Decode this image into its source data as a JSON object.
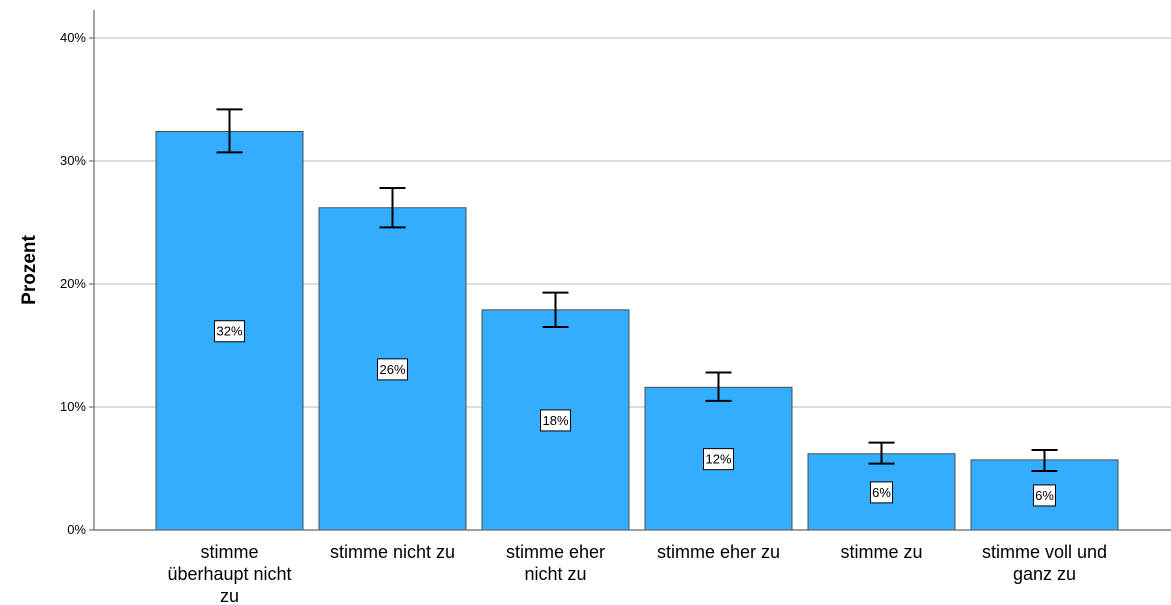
{
  "chart_data": {
    "type": "bar",
    "title": "",
    "xlabel": "",
    "ylabel": "Prozent",
    "ylim": [
      0,
      42
    ],
    "yticks": [
      0,
      10,
      20,
      30,
      40
    ],
    "ytick_labels": [
      "0%",
      "10%",
      "20%",
      "30%",
      "40%"
    ],
    "grid": true,
    "bar_color": "#33adff",
    "categories": [
      "stimme überhaupt nicht zu",
      "stimme nicht zu",
      "stimme eher nicht zu",
      "stimme eher zu",
      "stimme zu",
      "stimme voll und ganz zu"
    ],
    "category_lines": [
      [
        "stimme",
        "überhaupt nicht",
        "zu"
      ],
      [
        "stimme nicht zu"
      ],
      [
        "stimme eher",
        "nicht zu"
      ],
      [
        "stimme eher zu"
      ],
      [
        "stimme zu"
      ],
      [
        "stimme voll und",
        "ganz zu"
      ]
    ],
    "values": [
      32.4,
      26.2,
      17.9,
      11.6,
      6.2,
      5.7
    ],
    "data_labels": [
      "32%",
      "26%",
      "18%",
      "12%",
      "6%",
      "6%"
    ],
    "error_bars": [
      [
        30.7,
        34.2
      ],
      [
        24.6,
        27.8
      ],
      [
        16.5,
        19.3
      ],
      [
        10.5,
        12.8
      ],
      [
        5.4,
        7.1
      ],
      [
        4.8,
        6.5
      ]
    ]
  }
}
